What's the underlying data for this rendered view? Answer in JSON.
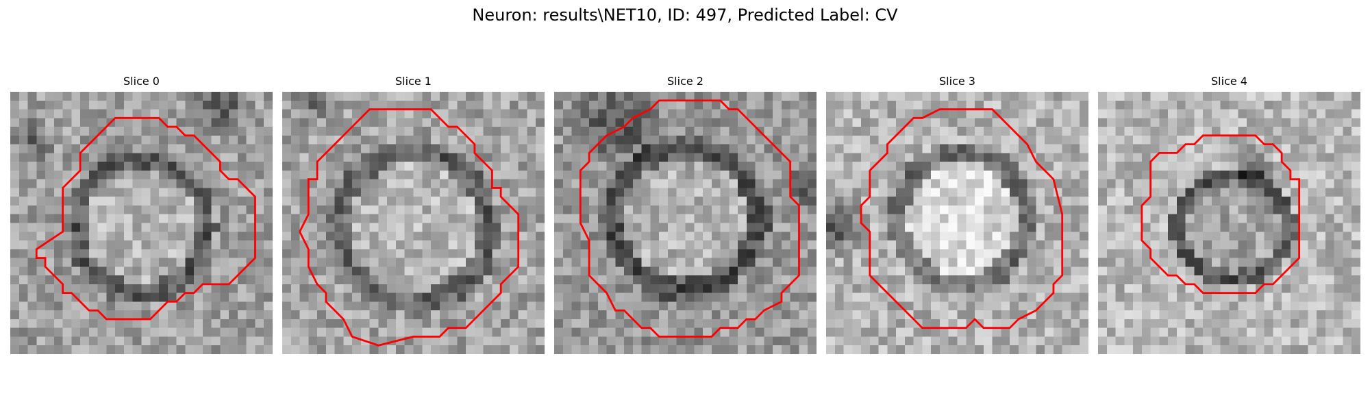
{
  "figure": {
    "title": "Neuron: results\\NET10, ID: 497, Predicted Label: CV",
    "contour_color": "#ff0000"
  },
  "slices": [
    {
      "label": "Slice 0"
    },
    {
      "label": "Slice 1"
    },
    {
      "label": "Slice 2"
    },
    {
      "label": "Slice 3"
    },
    {
      "label": "Slice 4"
    }
  ]
}
